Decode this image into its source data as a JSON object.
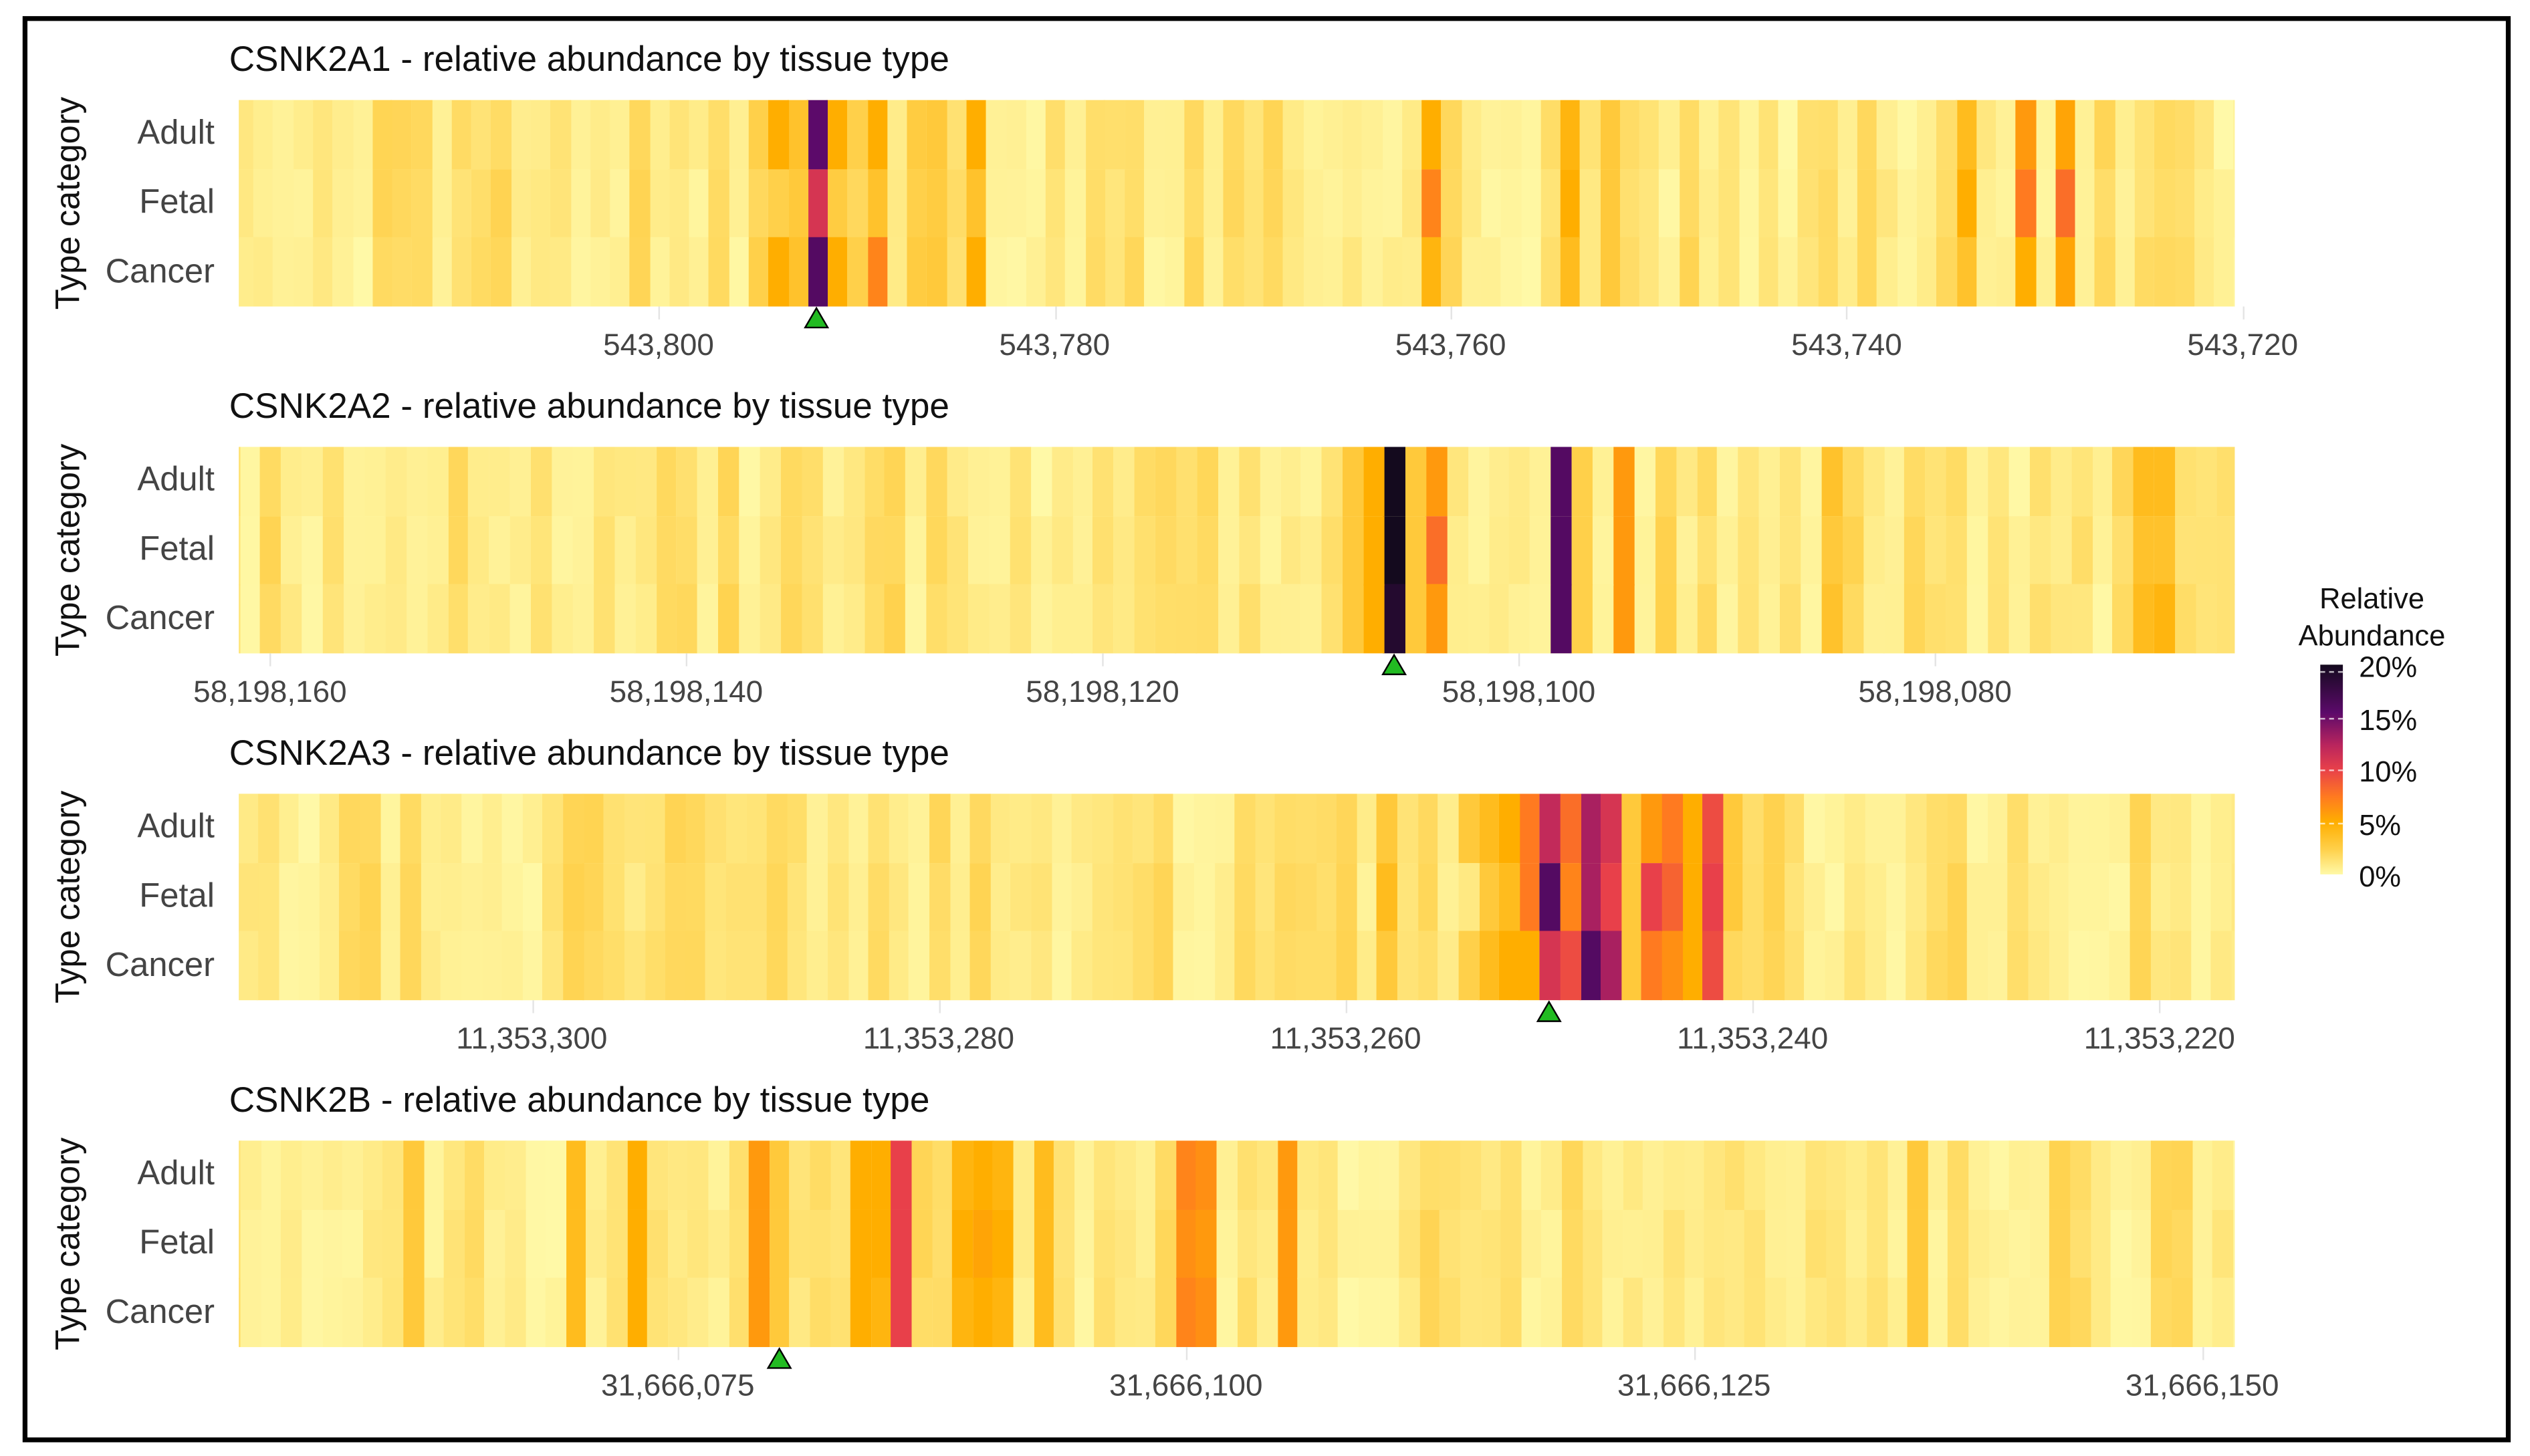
{
  "chart_data": [
    {
      "type": "heatmap",
      "title": "CSNK2A1 - relative abundance by tissue type",
      "ylabel": "Type category",
      "rows": [
        "Adult",
        "Fetal",
        "Cancer"
      ],
      "xlim": [
        543821.2,
        543720.4
      ],
      "x_ticks": [
        {
          "value": 543800,
          "label": "543,800"
        },
        {
          "value": 543780,
          "label": "543,780"
        },
        {
          "value": 543760,
          "label": "543,760"
        },
        {
          "value": 543740,
          "label": "543,740"
        },
        {
          "value": 543720,
          "label": "543,720"
        }
      ],
      "marker_position": 543792,
      "baseline_percent_range": [
        0.3,
        2.2
      ],
      "hotspots": [
        {
          "pos": 543795,
          "v": [
            2.5,
            2,
            2.5
          ]
        },
        {
          "pos": 543794,
          "v": [
            5,
            2.5,
            5
          ]
        },
        {
          "pos": 543793,
          "v": [
            3.5,
            3,
            3.5
          ]
        },
        {
          "pos": 543792,
          "v": [
            15.5,
            11,
            16
          ]
        },
        {
          "pos": 543791,
          "v": [
            5,
            2.8,
            5
          ]
        },
        {
          "pos": 543790,
          "v": [
            2.5,
            2,
            2.5
          ]
        },
        {
          "pos": 543789,
          "v": [
            5,
            3.5,
            7
          ]
        },
        {
          "pos": 543787,
          "v": [
            2.8,
            2.5,
            2.8
          ]
        },
        {
          "pos": 543786,
          "v": [
            3,
            2.8,
            3
          ]
        },
        {
          "pos": 543784,
          "v": [
            5,
            3.5,
            5
          ]
        },
        {
          "pos": 543761,
          "v": [
            5,
            7,
            4.5
          ]
        },
        {
          "pos": 543754,
          "v": [
            4.5,
            5,
            4
          ]
        },
        {
          "pos": 543752,
          "v": [
            3,
            3,
            3
          ]
        },
        {
          "pos": 543734,
          "v": [
            4,
            5,
            3.5
          ]
        },
        {
          "pos": 543731,
          "v": [
            6,
            7.5,
            5
          ]
        },
        {
          "pos": 543729,
          "v": [
            5.5,
            8,
            5.5
          ]
        }
      ]
    },
    {
      "type": "heatmap",
      "title": "CSNK2A2 - relative abundance by tissue type",
      "ylabel": "Type category",
      "rows": [
        "Adult",
        "Fetal",
        "Cancer"
      ],
      "xlim": [
        58198161.5,
        58198065.6
      ],
      "x_ticks": [
        {
          "value": 58198160,
          "label": "58,198,160"
        },
        {
          "value": 58198140,
          "label": "58,198,140"
        },
        {
          "value": 58198120,
          "label": "58,198,120"
        },
        {
          "value": 58198100,
          "label": "58,198,100"
        },
        {
          "value": 58198080,
          "label": "58,198,080"
        }
      ],
      "marker_position": 58198106,
      "baseline_percent_range": [
        0.3,
        2.2
      ],
      "hotspots": [
        {
          "pos": 58198108,
          "v": [
            3,
            3,
            3
          ]
        },
        {
          "pos": 58198107,
          "v": [
            5,
            5,
            5
          ]
        },
        {
          "pos": 58198106,
          "v": [
            20,
            20,
            19
          ]
        },
        {
          "pos": 58198105,
          "v": [
            3,
            3,
            3
          ]
        },
        {
          "pos": 58198104,
          "v": [
            6,
            8,
            6
          ]
        },
        {
          "pos": 58198098,
          "v": [
            16,
            16,
            16
          ]
        },
        {
          "pos": 58198097,
          "v": [
            2.5,
            2.5,
            2.5
          ]
        },
        {
          "pos": 58198095,
          "v": [
            6,
            6,
            6
          ]
        },
        {
          "pos": 58198085,
          "v": [
            3.5,
            3,
            3.5
          ]
        },
        {
          "pos": 58198070,
          "v": [
            4,
            3.5,
            4
          ]
        },
        {
          "pos": 58198069,
          "v": [
            4,
            3.5,
            4.5
          ]
        }
      ]
    },
    {
      "type": "heatmap",
      "title": "CSNK2A3 - relative abundance by tissue type",
      "ylabel": "Type category",
      "rows": [
        "Adult",
        "Fetal",
        "Cancer"
      ],
      "xlim": [
        11353314.4,
        11353216.3
      ],
      "x_ticks": [
        {
          "value": 11353300,
          "label": "11,353,300"
        },
        {
          "value": 11353280,
          "label": "11,353,280"
        },
        {
          "value": 11353260,
          "label": "11,353,260"
        },
        {
          "value": 11353240,
          "label": "11,353,240"
        },
        {
          "value": 11353220,
          "label": "11,353,220"
        }
      ],
      "marker_position": 11353250,
      "baseline_percent_range": [
        0.3,
        2.2
      ],
      "hotspots": [
        {
          "pos": 11353258,
          "v": [
            3,
            4,
            3
          ]
        },
        {
          "pos": 11353254,
          "v": [
            3,
            1,
            2.5
          ]
        },
        {
          "pos": 11353253,
          "v": [
            4,
            3,
            4
          ]
        },
        {
          "pos": 11353252,
          "v": [
            5,
            4,
            5
          ]
        },
        {
          "pos": 11353251,
          "v": [
            7.5,
            7.5,
            5
          ]
        },
        {
          "pos": 11353250,
          "v": [
            12,
            16,
            11
          ]
        },
        {
          "pos": 11353249,
          "v": [
            8,
            7,
            9.5
          ]
        },
        {
          "pos": 11353248,
          "v": [
            13,
            13,
            16
          ]
        },
        {
          "pos": 11353247,
          "v": [
            11,
            10,
            13
          ]
        },
        {
          "pos": 11353246,
          "v": [
            3,
            3,
            3
          ]
        },
        {
          "pos": 11353245,
          "v": [
            6,
            10,
            7.5
          ]
        },
        {
          "pos": 11353244,
          "v": [
            7.5,
            8.5,
            6.5
          ]
        },
        {
          "pos": 11353243,
          "v": [
            5,
            5,
            5
          ]
        },
        {
          "pos": 11353242,
          "v": [
            9.5,
            10,
            9.5
          ]
        },
        {
          "pos": 11353241,
          "v": [
            3,
            3,
            2
          ]
        }
      ]
    },
    {
      "type": "heatmap",
      "title": "CSNK2B - relative abundance by tissue type",
      "ylabel": "Type category",
      "rows": [
        "Adult",
        "Fetal",
        "Cancer"
      ],
      "xlim": [
        31666053.4,
        31666151.6
      ],
      "x_ticks": [
        {
          "value": 31666075,
          "label": "31,666,075"
        },
        {
          "value": 31666100,
          "label": "31,666,100"
        },
        {
          "value": 31666125,
          "label": "31,666,125"
        },
        {
          "value": 31666150,
          "label": "31,666,150"
        }
      ],
      "marker_position": 31666080,
      "baseline_percent_range": [
        0.3,
        2.2
      ],
      "hotspots": [
        {
          "pos": 31666062,
          "v": [
            3,
            3,
            3
          ]
        },
        {
          "pos": 31666070,
          "v": [
            4,
            4,
            4
          ]
        },
        {
          "pos": 31666073,
          "v": [
            5,
            5,
            5
          ]
        },
        {
          "pos": 31666079,
          "v": [
            6,
            6,
            6
          ]
        },
        {
          "pos": 31666080,
          "v": [
            3,
            3,
            3
          ]
        },
        {
          "pos": 31666084,
          "v": [
            5,
            5,
            5
          ]
        },
        {
          "pos": 31666085,
          "v": [
            5,
            5,
            4.5
          ]
        },
        {
          "pos": 31666086,
          "v": [
            10,
            10,
            10
          ]
        },
        {
          "pos": 31666089,
          "v": [
            4.5,
            5,
            4.5
          ]
        },
        {
          "pos": 31666090,
          "v": [
            5,
            5.5,
            5
          ]
        },
        {
          "pos": 31666091,
          "v": [
            4.5,
            5,
            4.5
          ]
        },
        {
          "pos": 31666093,
          "v": [
            4,
            4,
            4
          ]
        },
        {
          "pos": 31666100,
          "v": [
            7,
            6.5,
            7
          ]
        },
        {
          "pos": 31666101,
          "v": [
            6.5,
            6,
            6.5
          ]
        },
        {
          "pos": 31666105,
          "v": [
            6,
            6,
            6
          ]
        },
        {
          "pos": 31666136,
          "v": [
            3,
            3,
            3
          ]
        }
      ]
    }
  ],
  "legend": {
    "title_line1": "Relative",
    "title_line2": "Abundance",
    "ticks": [
      {
        "value": 20,
        "label": "20%"
      },
      {
        "value": 15,
        "label": "15%"
      },
      {
        "value": 10,
        "label": "10%"
      },
      {
        "value": 5,
        "label": "5%"
      },
      {
        "value": 0,
        "label": "0%"
      }
    ],
    "color_stops": [
      [
        0,
        "#fff9a8"
      ],
      [
        2.5,
        "#ffd04a"
      ],
      [
        5,
        "#ffae00"
      ],
      [
        7.5,
        "#ff7a20"
      ],
      [
        10,
        "#e8404a"
      ],
      [
        12.5,
        "#b8245e"
      ],
      [
        15.5,
        "#5c0a6a"
      ],
      [
        20,
        "#140a1e"
      ]
    ]
  },
  "colors": {
    "marker": "#22bb22"
  }
}
